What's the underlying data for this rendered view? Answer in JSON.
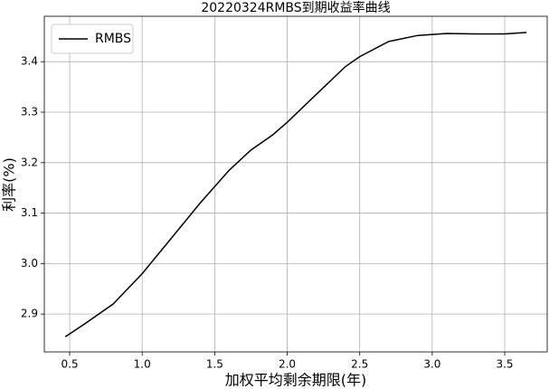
{
  "chart_data": {
    "type": "line",
    "title": "20220324RMBS到期收益率曲线",
    "x_label": "加权平均剩余期限(年)",
    "y_label": "利率(%)",
    "x": [
      0.47,
      0.6,
      0.8,
      1.0,
      1.2,
      1.4,
      1.6,
      1.75,
      1.9,
      2.0,
      2.2,
      2.4,
      2.5,
      2.7,
      2.9,
      3.1,
      3.3,
      3.5,
      3.65
    ],
    "series": [
      {
        "name": "RMBS",
        "color": "#000000",
        "values": [
          2.855,
          2.88,
          2.92,
          2.98,
          3.05,
          3.12,
          3.185,
          3.225,
          3.255,
          3.28,
          3.335,
          3.39,
          3.41,
          3.44,
          3.452,
          3.456,
          3.455,
          3.455,
          3.458
        ]
      }
    ],
    "xlim": [
      0.325,
      3.793
    ],
    "ylim": [
      2.825,
      3.49
    ],
    "xticks": [
      0.5,
      {
        "value": 1.0,
        "label": "1.0"
      },
      1.5,
      {
        "value": 2.0,
        "label": "2.0"
      },
      2.5,
      {
        "value": 3.0,
        "label": "3.0"
      },
      3.5
    ],
    "yticks": [
      2.9,
      {
        "value": 3.0,
        "label": "3.0"
      },
      3.1,
      3.2,
      3.3,
      3.4
    ],
    "grid": true,
    "legend": "upper left"
  }
}
